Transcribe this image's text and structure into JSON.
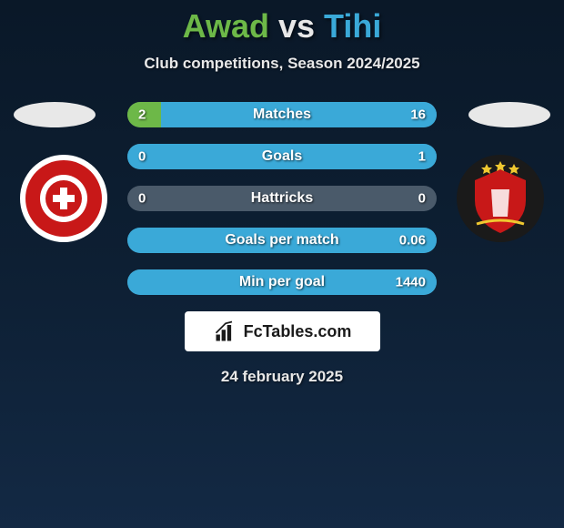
{
  "title": {
    "player1": "Awad",
    "vs": "vs",
    "player2": "Tihi",
    "player1_color": "#6db848",
    "vs_color": "#e8e8e8",
    "player2_color": "#3aa9d8"
  },
  "subtitle": {
    "text": "Club competitions, Season 2024/2025",
    "color": "#e8e8e8"
  },
  "avatars": {
    "left_color": "#e8e8e8",
    "right_color": "#e8e8e8"
  },
  "badges": {
    "left": {
      "bg": "#ffffff",
      "primary": "#c81818",
      "accent": "#ffffff"
    },
    "right": {
      "bg": "#1a1a1a",
      "primary": "#c81818",
      "accent": "#f0c830"
    }
  },
  "bars": {
    "left_color": "#6db848",
    "right_color": "#3aa9d8",
    "neutral_color": "#4a5a6a",
    "rows": [
      {
        "label": "Matches",
        "left": "2",
        "right": "16",
        "left_pct": 11,
        "right_pct": 89
      },
      {
        "label": "Goals",
        "left": "0",
        "right": "1",
        "left_pct": 0,
        "right_pct": 100
      },
      {
        "label": "Hattricks",
        "left": "0",
        "right": "0",
        "left_pct": 0,
        "right_pct": 0
      },
      {
        "label": "Goals per match",
        "left": "",
        "right": "0.06",
        "left_pct": 0,
        "right_pct": 100
      },
      {
        "label": "Min per goal",
        "left": "",
        "right": "1440",
        "left_pct": 0,
        "right_pct": 100
      }
    ]
  },
  "logo": {
    "bg": "#ffffff",
    "text": "FcTables.com",
    "text_color": "#1a1a1a",
    "icon_color": "#1a1a1a"
  },
  "date": {
    "text": "24 february 2025",
    "color": "#e8e8e8"
  }
}
